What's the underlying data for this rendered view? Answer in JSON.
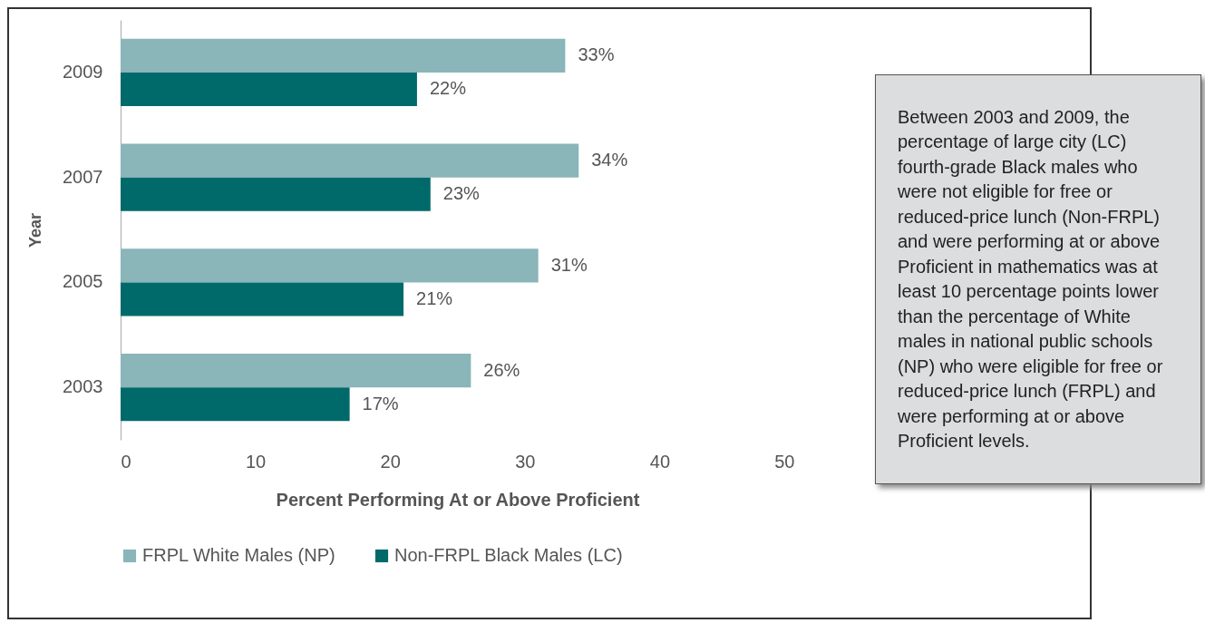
{
  "chart_data": {
    "type": "bar",
    "orientation": "horizontal",
    "xlabel": "Percent Performing At or Above Proficient",
    "ylabel": "Year",
    "categories": [
      "2009",
      "2007",
      "2005",
      "2003"
    ],
    "series": [
      {
        "name": "FRPL White Males (NP)",
        "color": "#8ab5b9",
        "values": [
          33,
          34,
          31,
          26
        ],
        "value_labels": [
          "33%",
          "34%",
          "31%",
          "26%"
        ]
      },
      {
        "name": "Non-FRPL Black Males (LC)",
        "color": "#006a6b",
        "values": [
          22,
          23,
          21,
          17
        ],
        "value_labels": [
          "22%",
          "23%",
          "21%",
          "17%"
        ]
      }
    ],
    "xlim": [
      0,
      50
    ],
    "xticks": [
      0,
      10,
      20,
      30,
      40,
      50
    ],
    "grid": false,
    "legend": "bottom",
    "annotations": [
      "Between 2003 and 2009, the percentage of large city (LC) fourth-grade Black males who were not eligible for free or reduced-price lunch (Non-FRPL) and were performing at or above Proficient in mathematics was at least 10 percentage points lower than the percentage of White males in national public schools (NP) who were eligible for free or reduced-price lunch (FRPL) and were performing at or above Proficient levels."
    ]
  }
}
